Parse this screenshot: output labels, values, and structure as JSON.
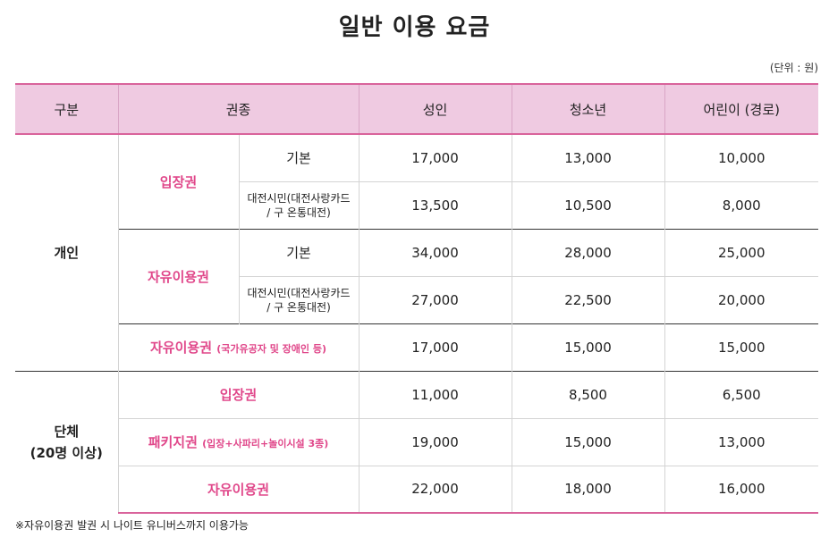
{
  "title": "일반 이용 요금",
  "unit": "(단위 : 원)",
  "headers": [
    "구분",
    "권종",
    "성인",
    "청소년",
    "어린이 (경로)"
  ],
  "groups": {
    "individual": "개인",
    "group_line1": "단체",
    "group_line2": "(20명 이상)"
  },
  "tickets": {
    "entry": "입장권",
    "freepass": "자유이용권",
    "freepass_special": "자유이용권",
    "freepass_special_note": "(국가유공자 및 장애인 등)",
    "package": "패키지권",
    "package_note": "(입장+사파리+놀이시설 3종)",
    "group_entry": "입장권",
    "group_freepass": "자유이용권"
  },
  "subtypes": {
    "basic": "기본",
    "citizen_line1": "대전시민(대전사랑카드",
    "citizen_line2": "/ 구 온통대전)"
  },
  "prices": {
    "entry_basic": [
      "17,000",
      "13,000",
      "10,000"
    ],
    "entry_citizen": [
      "13,500",
      "10,500",
      "8,000"
    ],
    "free_basic": [
      "34,000",
      "28,000",
      "25,000"
    ],
    "free_citizen": [
      "27,000",
      "22,500",
      "20,000"
    ],
    "free_special": [
      "17,000",
      "15,000",
      "15,000"
    ],
    "group_entry": [
      "11,000",
      "8,500",
      "6,500"
    ],
    "group_package": [
      "19,000",
      "15,000",
      "13,000"
    ],
    "group_free": [
      "22,000",
      "18,000",
      "16,000"
    ]
  },
  "colors": {
    "accent": "#e0478a",
    "header_bg": "#efcae1",
    "border_pink": "#d9639b"
  },
  "note": "※자유이용권 발권 시 나이트 유니버스까지 이용가능"
}
